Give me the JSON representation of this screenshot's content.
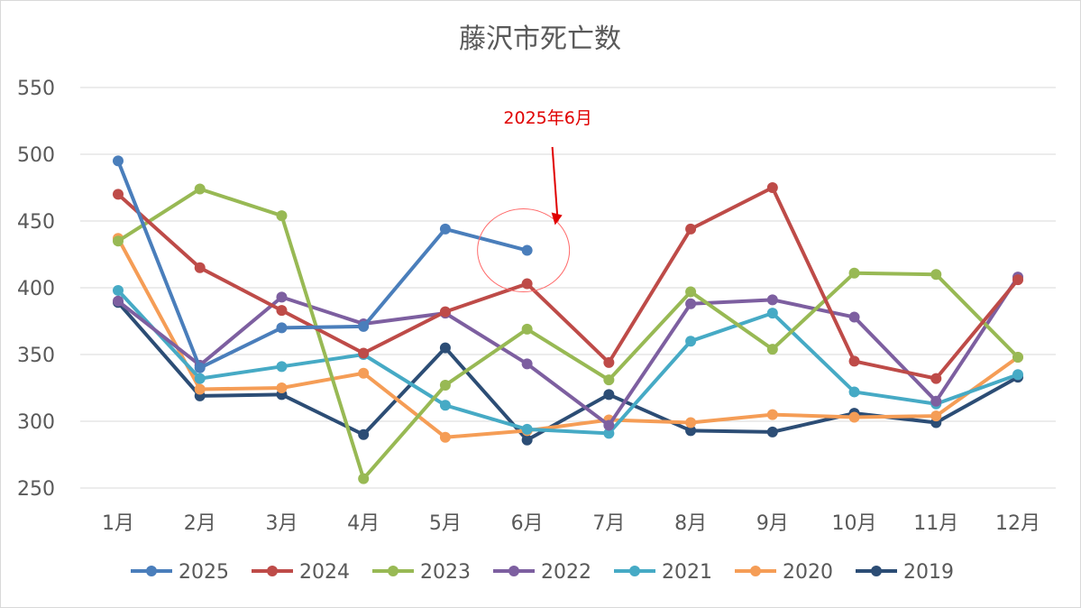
{
  "chart_data": {
    "type": "line",
    "title": "藤沢市死亡数",
    "xlabel": "",
    "ylabel": "",
    "categories": [
      "1月",
      "2月",
      "3月",
      "4月",
      "5月",
      "6月",
      "7月",
      "8月",
      "9月",
      "10月",
      "11月",
      "12月"
    ],
    "ylim": [
      250,
      550
    ],
    "yticks": [
      250,
      300,
      350,
      400,
      450,
      500,
      550
    ],
    "grid": true,
    "legend_position": "bottom",
    "series": [
      {
        "name": "2025",
        "color": "#4a7ebb",
        "values": [
          495,
          340,
          370,
          371,
          444,
          428,
          null,
          null,
          null,
          null,
          null,
          null
        ]
      },
      {
        "name": "2024",
        "color": "#be4b48",
        "values": [
          470,
          415,
          383,
          351,
          382,
          403,
          344,
          444,
          475,
          345,
          332,
          406
        ]
      },
      {
        "name": "2023",
        "color": "#98b954",
        "values": [
          435,
          474,
          454,
          257,
          327,
          369,
          331,
          397,
          354,
          411,
          410,
          348
        ]
      },
      {
        "name": "2022",
        "color": "#7d5fa0",
        "values": [
          390,
          342,
          393,
          373,
          381,
          343,
          297,
          388,
          391,
          378,
          315,
          408
        ]
      },
      {
        "name": "2021",
        "color": "#46aac5",
        "values": [
          398,
          332,
          341,
          350,
          312,
          294,
          291,
          360,
          381,
          322,
          313,
          335
        ]
      },
      {
        "name": "2020",
        "color": "#f59d56",
        "values": [
          437,
          324,
          325,
          336,
          288,
          293,
          301,
          299,
          305,
          303,
          304,
          348
        ]
      },
      {
        "name": "2019",
        "color": "#2c4d75",
        "values": [
          389,
          319,
          320,
          290,
          355,
          286,
          320,
          293,
          292,
          306,
          299,
          333
        ]
      }
    ],
    "annotations": [
      {
        "text": "2025年6月",
        "color": "#e00000",
        "target_category": "6月",
        "target_value": 428
      }
    ]
  }
}
